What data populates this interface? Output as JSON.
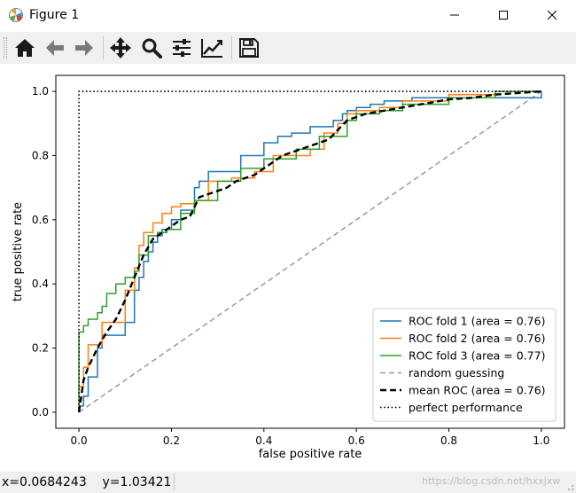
{
  "window": {
    "title": "Figure 1",
    "minimize_glyph": "minimize",
    "maximize_glyph": "maximize",
    "close_glyph": "close"
  },
  "toolbar": {
    "buttons": [
      {
        "name": "home",
        "icon": "home-icon"
      },
      {
        "name": "back",
        "icon": "arrow-left-icon"
      },
      {
        "name": "forward",
        "icon": "arrow-right-icon"
      },
      {
        "name": "pan",
        "icon": "move-icon"
      },
      {
        "name": "zoom",
        "icon": "magnifier-icon"
      },
      {
        "name": "subplots",
        "icon": "sliders-icon"
      },
      {
        "name": "edit-axes",
        "icon": "line-chart-icon"
      },
      {
        "name": "save",
        "icon": "floppy-disk-icon"
      }
    ]
  },
  "status": {
    "coords": "x=0.0684243    y=1.03421",
    "watermark": "https://blog.csdn.net/hxxjxw"
  },
  "chart_data": {
    "type": "line",
    "title": "",
    "xlabel": "false positive rate",
    "ylabel": "true positive rate",
    "xlim": [
      -0.05,
      1.05
    ],
    "ylim": [
      -0.05,
      1.05
    ],
    "x_ticks": [
      "0.0",
      "0.2",
      "0.4",
      "0.6",
      "0.8",
      "1.0"
    ],
    "y_ticks": [
      "0.0",
      "0.2",
      "0.4",
      "0.6",
      "0.8",
      "1.0"
    ],
    "grid": false,
    "legend_position": "lower-right",
    "series": [
      {
        "name": "ROC fold 1 (area = 0.76)",
        "color": "#1f77b4",
        "style": "solid",
        "x": [
          0.0,
          0.0,
          0.01,
          0.01,
          0.02,
          0.02,
          0.04,
          0.04,
          0.05,
          0.05,
          0.1,
          0.1,
          0.12,
          0.12,
          0.13,
          0.13,
          0.14,
          0.14,
          0.15,
          0.15,
          0.16,
          0.16,
          0.17,
          0.17,
          0.18,
          0.18,
          0.2,
          0.2,
          0.22,
          0.22,
          0.25,
          0.25,
          0.26,
          0.26,
          0.28,
          0.28,
          0.35,
          0.35,
          0.4,
          0.4,
          0.43,
          0.43,
          0.46,
          0.46,
          0.5,
          0.5,
          0.55,
          0.55,
          0.57,
          0.57,
          0.58,
          0.58,
          0.6,
          0.6,
          0.63,
          0.63,
          0.66,
          0.66,
          0.72,
          0.72,
          0.8,
          0.8,
          0.9,
          0.9,
          1.0,
          1.0
        ],
        "y": [
          0.0,
          0.02,
          0.02,
          0.05,
          0.05,
          0.11,
          0.11,
          0.2,
          0.2,
          0.24,
          0.24,
          0.28,
          0.28,
          0.38,
          0.38,
          0.42,
          0.42,
          0.47,
          0.47,
          0.5,
          0.5,
          0.53,
          0.53,
          0.55,
          0.55,
          0.57,
          0.57,
          0.6,
          0.6,
          0.63,
          0.63,
          0.7,
          0.7,
          0.72,
          0.72,
          0.75,
          0.75,
          0.8,
          0.8,
          0.84,
          0.84,
          0.86,
          0.86,
          0.87,
          0.87,
          0.89,
          0.89,
          0.91,
          0.91,
          0.93,
          0.93,
          0.94,
          0.94,
          0.95,
          0.95,
          0.96,
          0.96,
          0.97,
          0.97,
          0.98,
          0.98,
          0.98,
          0.98,
          0.98,
          0.98,
          1.0
        ]
      },
      {
        "name": "ROC fold 2 (area = 0.76)",
        "color": "#ff7f0e",
        "style": "solid",
        "x": [
          0.0,
          0.0,
          0.01,
          0.01,
          0.02,
          0.02,
          0.05,
          0.05,
          0.1,
          0.1,
          0.12,
          0.12,
          0.13,
          0.13,
          0.14,
          0.14,
          0.16,
          0.16,
          0.18,
          0.18,
          0.2,
          0.2,
          0.22,
          0.22,
          0.25,
          0.25,
          0.28,
          0.28,
          0.33,
          0.33,
          0.38,
          0.38,
          0.42,
          0.42,
          0.5,
          0.5,
          0.53,
          0.53,
          0.56,
          0.56,
          0.58,
          0.58,
          0.6,
          0.6,
          0.65,
          0.65,
          0.7,
          0.7,
          0.8,
          0.8,
          0.9,
          0.9,
          1.0
        ],
        "y": [
          0.0,
          0.08,
          0.08,
          0.14,
          0.14,
          0.21,
          0.21,
          0.28,
          0.28,
          0.38,
          0.38,
          0.45,
          0.45,
          0.52,
          0.52,
          0.56,
          0.56,
          0.59,
          0.59,
          0.62,
          0.62,
          0.64,
          0.64,
          0.65,
          0.65,
          0.66,
          0.66,
          0.72,
          0.72,
          0.73,
          0.73,
          0.75,
          0.75,
          0.8,
          0.8,
          0.82,
          0.82,
          0.87,
          0.87,
          0.9,
          0.9,
          0.93,
          0.93,
          0.94,
          0.94,
          0.95,
          0.95,
          0.97,
          0.97,
          0.99,
          0.99,
          1.0,
          1.0
        ]
      },
      {
        "name": "ROC fold 3 (area = 0.77)",
        "color": "#2ca02c",
        "style": "solid",
        "x": [
          0.0,
          0.0,
          0.01,
          0.01,
          0.02,
          0.02,
          0.04,
          0.04,
          0.05,
          0.05,
          0.06,
          0.06,
          0.08,
          0.08,
          0.1,
          0.1,
          0.12,
          0.12,
          0.13,
          0.13,
          0.15,
          0.15,
          0.17,
          0.17,
          0.19,
          0.19,
          0.22,
          0.22,
          0.25,
          0.25,
          0.3,
          0.3,
          0.35,
          0.35,
          0.4,
          0.4,
          0.47,
          0.47,
          0.52,
          0.52,
          0.58,
          0.58,
          0.6,
          0.6,
          0.65,
          0.65,
          0.7,
          0.7,
          0.8,
          0.8,
          0.9,
          0.9,
          1.0
        ],
        "y": [
          0.0,
          0.25,
          0.25,
          0.27,
          0.27,
          0.29,
          0.29,
          0.31,
          0.31,
          0.33,
          0.33,
          0.37,
          0.37,
          0.4,
          0.4,
          0.42,
          0.42,
          0.44,
          0.44,
          0.49,
          0.49,
          0.55,
          0.55,
          0.56,
          0.56,
          0.57,
          0.57,
          0.62,
          0.62,
          0.66,
          0.66,
          0.72,
          0.72,
          0.76,
          0.76,
          0.79,
          0.79,
          0.82,
          0.82,
          0.86,
          0.86,
          0.91,
          0.91,
          0.93,
          0.93,
          0.94,
          0.94,
          0.96,
          0.96,
          0.98,
          0.98,
          1.0,
          1.0
        ]
      },
      {
        "name": "random guessing",
        "color": "#9a9a9a",
        "style": "dashed",
        "x": [
          0,
          1
        ],
        "y": [
          0,
          1
        ]
      },
      {
        "name": "mean ROC (area = 0.76)",
        "color": "#000000",
        "style": "dashed-bold",
        "x": [
          0.0,
          0.01,
          0.02,
          0.04,
          0.06,
          0.08,
          0.1,
          0.12,
          0.14,
          0.16,
          0.18,
          0.2,
          0.22,
          0.24,
          0.26,
          0.28,
          0.3,
          0.32,
          0.34,
          0.36,
          0.38,
          0.4,
          0.42,
          0.44,
          0.46,
          0.48,
          0.5,
          0.52,
          0.54,
          0.56,
          0.58,
          0.6,
          0.62,
          0.64,
          0.66,
          0.68,
          0.7,
          0.72,
          0.74,
          0.76,
          0.78,
          0.8,
          0.85,
          0.9,
          0.95,
          1.0
        ],
        "y": [
          0.0,
          0.1,
          0.14,
          0.2,
          0.25,
          0.29,
          0.35,
          0.42,
          0.49,
          0.54,
          0.56,
          0.58,
          0.6,
          0.61,
          0.67,
          0.68,
          0.69,
          0.7,
          0.72,
          0.73,
          0.74,
          0.76,
          0.78,
          0.8,
          0.81,
          0.82,
          0.83,
          0.84,
          0.85,
          0.88,
          0.91,
          0.92,
          0.93,
          0.935,
          0.94,
          0.945,
          0.95,
          0.955,
          0.96,
          0.965,
          0.97,
          0.975,
          0.98,
          0.99,
          0.995,
          1.0
        ]
      },
      {
        "name": "perfect performance",
        "color": "#000000",
        "style": "dotted",
        "x": [
          0,
          0,
          1
        ],
        "y": [
          0,
          1,
          1
        ]
      }
    ]
  }
}
